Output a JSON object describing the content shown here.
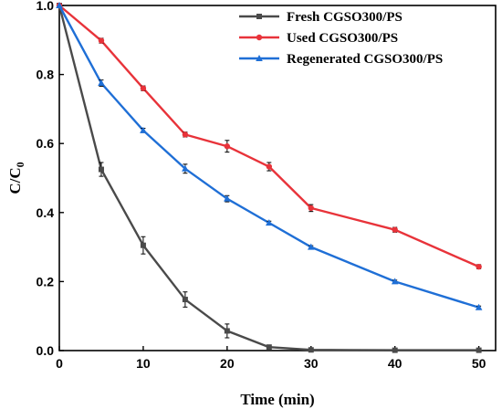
{
  "chart_data": {
    "type": "line",
    "xlabel": "Time (min)",
    "ylabel_main": "C/C",
    "ylabel_sub": "0",
    "xlim": [
      0,
      52
    ],
    "ylim": [
      0,
      1.0
    ],
    "xticks": [
      0,
      10,
      20,
      30,
      40,
      50
    ],
    "yticks": [
      0.0,
      0.2,
      0.4,
      0.6,
      0.8,
      1.0
    ],
    "xtick_labels": [
      "0",
      "10",
      "20",
      "30",
      "40",
      "50"
    ],
    "ytick_labels": [
      "0.0",
      "0.2",
      "0.4",
      "0.6",
      "0.8",
      "1.0"
    ],
    "legend_position": "top-right",
    "series": [
      {
        "name": "Fresh CGSO300/PS",
        "color": "#4a4a4a",
        "marker": "square",
        "x": [
          0,
          5,
          10,
          15,
          20,
          25,
          30,
          40,
          50
        ],
        "y": [
          1.0,
          0.525,
          0.305,
          0.148,
          0.057,
          0.01,
          0.002,
          0.001,
          0.001
        ],
        "err": [
          0,
          0.02,
          0.025,
          0.022,
          0.02,
          0.006,
          0,
          0,
          0
        ]
      },
      {
        "name": "Used CGSO300/PS",
        "color": "#e8333a",
        "marker": "circle",
        "x": [
          0,
          5,
          10,
          15,
          20,
          25,
          30,
          40,
          50
        ],
        "y": [
          1.0,
          0.898,
          0.76,
          0.626,
          0.592,
          0.533,
          0.413,
          0.35,
          0.243
        ],
        "err": [
          0,
          0.007,
          0.007,
          0.007,
          0.017,
          0.012,
          0.01,
          0.007,
          0.006
        ]
      },
      {
        "name": "Regenerated CGSO300/PS",
        "color": "#1f6fd6",
        "marker": "triangle",
        "x": [
          0,
          5,
          10,
          15,
          20,
          25,
          30,
          40,
          50
        ],
        "y": [
          1.0,
          0.775,
          0.638,
          0.527,
          0.44,
          0.37,
          0.3,
          0.2,
          0.125
        ],
        "err": [
          0,
          0.009,
          0.006,
          0.013,
          0.009,
          0.005,
          0.004,
          0.004,
          0.004
        ]
      }
    ]
  }
}
